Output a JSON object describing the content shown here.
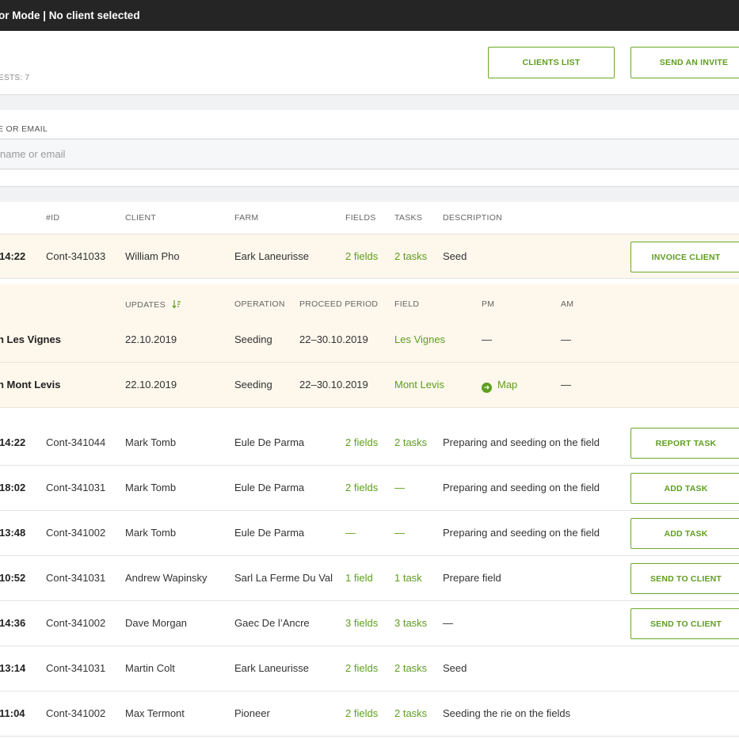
{
  "topbar": {
    "title": "or Mode | No client selected"
  },
  "header": {
    "requests_label": "ESTS: 7",
    "buttons": {
      "clients_list": "CLIENTS LIST",
      "send_invite": "SEND AN INVITE"
    }
  },
  "search": {
    "label": "E OR EMAIL",
    "placeholder": "name or email"
  },
  "table": {
    "headers": {
      "id": "#ID",
      "client": "CLIENT",
      "farm": "FARM",
      "fields": "FIELDS",
      "tasks": "TASKS",
      "description": "DESCRIPTION"
    },
    "selected": {
      "time": "14:22",
      "id": "Cont-341033",
      "client": "William Pho",
      "farm": "Eark Laneurisse",
      "fields": "2 fields",
      "tasks": "2 tasks",
      "description": "Seed",
      "action": "INVOICE CLIENT"
    },
    "sub_headers": {
      "updates": "UPDATES",
      "operation": "OPERATION",
      "proceed": "PROCEED PERIOD",
      "field": "FIELD",
      "pm": "PM",
      "am": "AM"
    },
    "sub_rows": [
      {
        "name": "n Les Vignes",
        "updates": "22.10.2019",
        "operation": "Seeding",
        "period": "22–30.10.2019",
        "field": "Les Vignes",
        "pm": "—",
        "am": "—"
      },
      {
        "name": "n Mont Levis",
        "updates": "22.10.2019",
        "operation": "Seeding",
        "period": "22–30.10.2019",
        "field": "Mont Levis",
        "pm": "Map",
        "am": "—"
      }
    ],
    "rows": [
      {
        "time": "14:22",
        "id": "Cont-341044",
        "client": "Mark Tomb",
        "farm": "Eule De Parma",
        "fields": "2 fields",
        "tasks": "2 tasks",
        "description": "Preparing and seeding on the field",
        "action": "REPORT TASK"
      },
      {
        "time": "18:02",
        "id": "Cont-341031",
        "client": "Mark Tomb",
        "farm": "Eule De Parma",
        "fields": "2 fields",
        "tasks": "—",
        "description": "Preparing and seeding on the field",
        "action": "ADD TASK"
      },
      {
        "time": "13:48",
        "id": "Cont-341002",
        "client": "Mark Tomb",
        "farm": "Eule De Parma",
        "fields": "—",
        "tasks": "—",
        "description": "Preparing and seeding on the field",
        "action": "ADD TASK"
      },
      {
        "time": "10:52",
        "id": "Cont-341031",
        "client": "Andrew Wapinsky",
        "farm": "Sarl La Ferme Du Val",
        "fields": "1 field",
        "tasks": "1 task",
        "description": "Prepare field",
        "action": "SEND TO CLIENT"
      },
      {
        "time": "14:36",
        "id": "Cont-341002",
        "client": "Dave Morgan",
        "farm": "Gaec De l’Ancre",
        "fields": "3 fields",
        "tasks": "3 tasks",
        "description": "—",
        "action": "SEND TO CLIENT"
      },
      {
        "time": "13:14",
        "id": "Cont-341031",
        "client": "Martin Colt",
        "farm": "Eark Laneurisse",
        "fields": "2 fields",
        "tasks": "2 tasks",
        "description": "Seed",
        "action": ""
      },
      {
        "time": "11:04",
        "id": "Cont-341002",
        "client": "Max Termont",
        "farm": "Pioneer",
        "fields": "2 fields",
        "tasks": "2 tasks",
        "description": "Seeding the rie on the fields",
        "action": ""
      }
    ]
  },
  "colors": {
    "accent": "#5e9e1e",
    "topbar": "#252525",
    "selected_bg": "#fdf7ec"
  },
  "icons": {
    "sort": "sort-descending-icon",
    "map": "arrow-right-circle-icon"
  }
}
